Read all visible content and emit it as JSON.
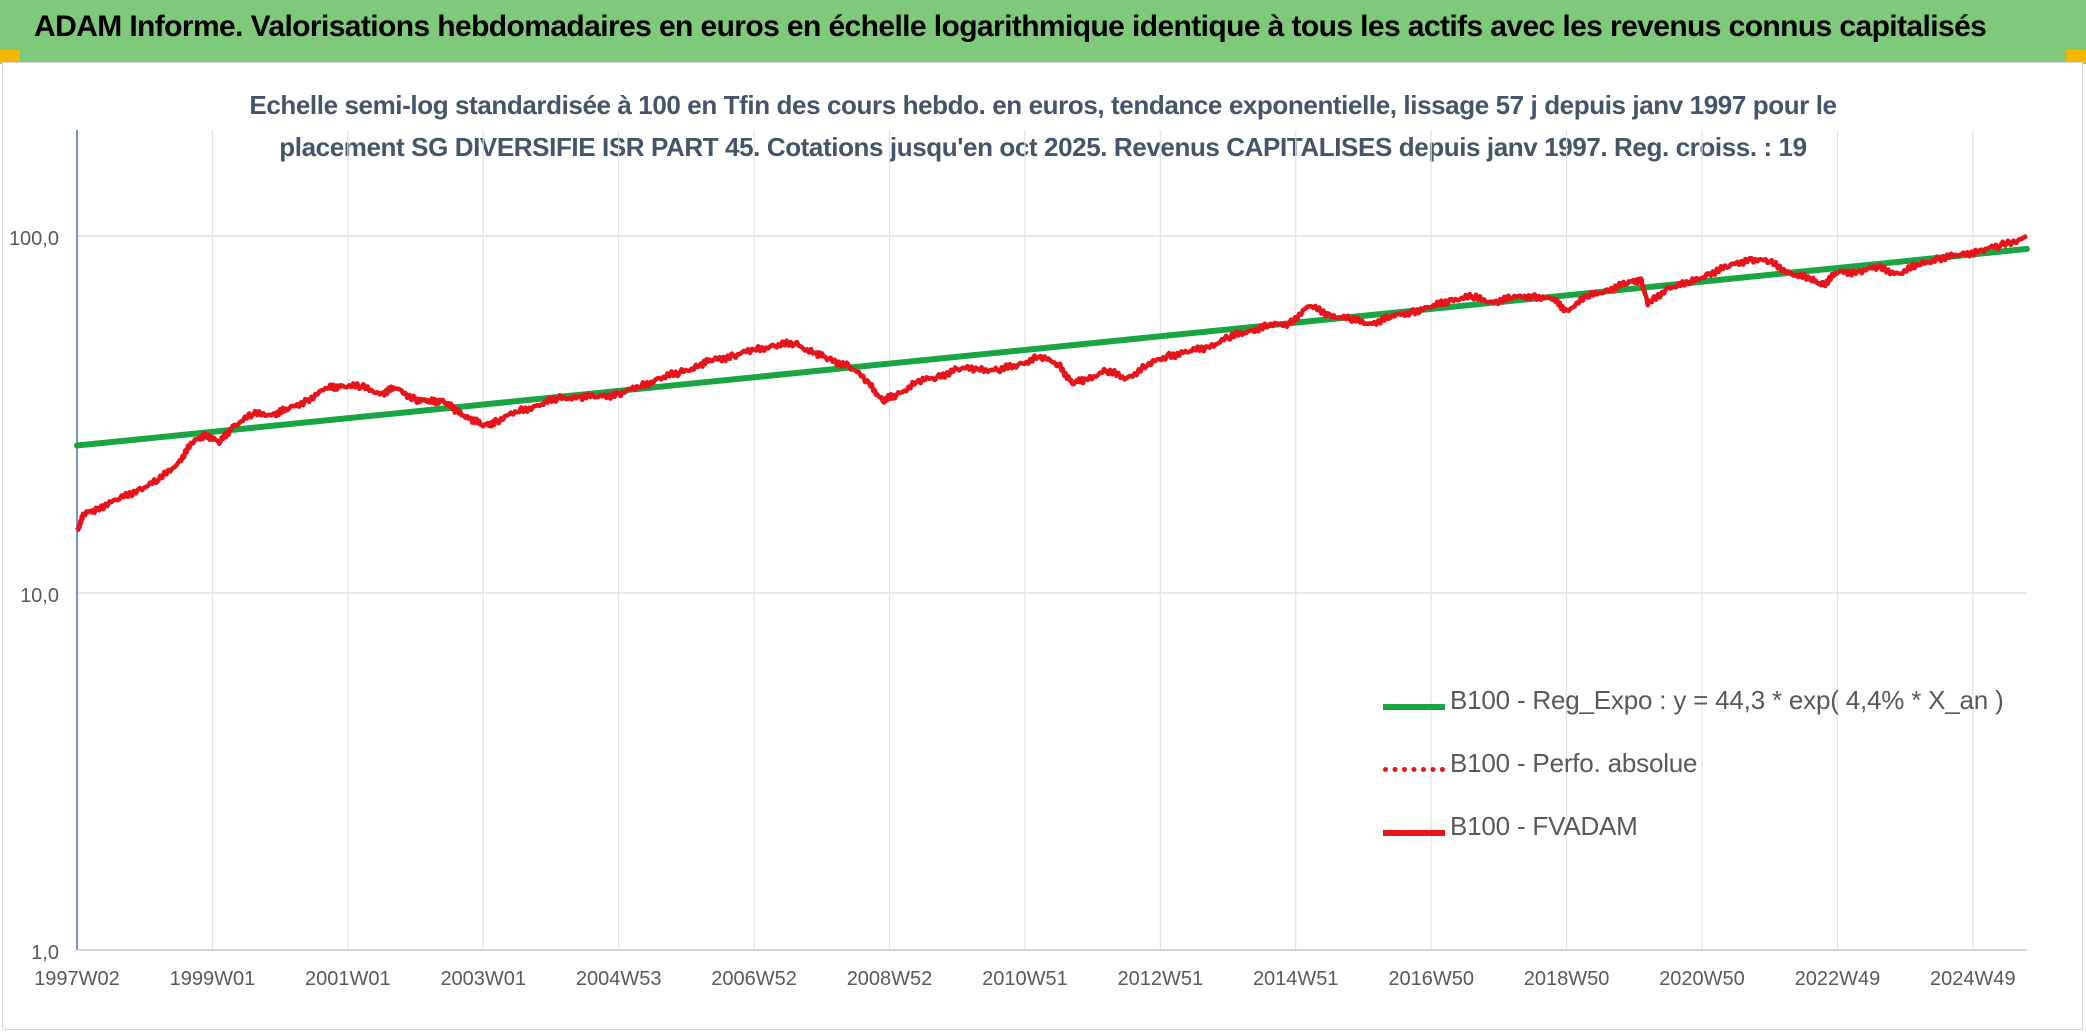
{
  "header": {
    "title": "ADAM Informe. Valorisations hebdomadaires en euros en échelle logarithmique identique à tous les actifs avec les revenus connus capitalisés"
  },
  "colors": {
    "header_bg": "#7fc97a",
    "regression": "#1aa544",
    "fvadam": "#e8141b",
    "perfo": "#e8141b",
    "subtitle_text": "#44546a"
  },
  "chart_data": {
    "type": "line",
    "title_line1": "Echelle semi-log standardisée à 100 en Tfin des cours hebdo. en euros, tendance exponentielle, lissage 57 j depuis janv 1997 pour le",
    "title_line2": "placement SG DIVERSIFIE ISR PART 45. Cotations jusqu'en oct 2025. Revenus CAPITALISES depuis janv 1997. Reg. croiss. : 19",
    "y_scale": "log",
    "ylim": [
      1,
      200
    ],
    "y_ticks": [
      {
        "value": 1,
        "label": "1,0"
      },
      {
        "value": 10,
        "label": "10,0"
      },
      {
        "value": 100,
        "label": "100,0"
      }
    ],
    "xlim": [
      1997.0,
      2025.8
    ],
    "x_ticks": [
      {
        "value": 1997.0,
        "label": "1997W02"
      },
      {
        "value": 1999.0,
        "label": "1999W01"
      },
      {
        "value": 2001.0,
        "label": "2001W01"
      },
      {
        "value": 2003.0,
        "label": "2003W01"
      },
      {
        "value": 2005.0,
        "label": "2004W53"
      },
      {
        "value": 2007.0,
        "label": "2006W52"
      },
      {
        "value": 2009.0,
        "label": "2008W52"
      },
      {
        "value": 2011.0,
        "label": "2010W51"
      },
      {
        "value": 2013.0,
        "label": "2012W51"
      },
      {
        "value": 2015.0,
        "label": "2014W51"
      },
      {
        "value": 2017.0,
        "label": "2016W50"
      },
      {
        "value": 2019.0,
        "label": "2018W50"
      },
      {
        "value": 2021.0,
        "label": "2020W50"
      },
      {
        "value": 2023.0,
        "label": "2022W49"
      },
      {
        "value": 2025.0,
        "label": "2024W49"
      }
    ],
    "grid": true,
    "legend_position": "bottom-right",
    "series": [
      {
        "name": "B100 - Reg_Expo : y = 44,3 * exp( 4,4% *  X_an )",
        "style": "solid-thick",
        "x": [
          1997.0,
          2025.8
        ],
        "values": [
          25.9,
          92.0
        ]
      },
      {
        "name": "B100 - Perfo. absolue",
        "style": "dotted",
        "x": [],
        "values": []
      },
      {
        "name": "B100 - FVADAM",
        "style": "solid",
        "x": [
          1997.0,
          1997.1,
          1997.3,
          1997.6,
          1997.9,
          1998.2,
          1998.5,
          1998.7,
          1998.9,
          1999.1,
          1999.3,
          1999.6,
          1999.9,
          2000.1,
          2000.4,
          2000.7,
          2000.9,
          2001.2,
          2001.5,
          2001.7,
          2002.0,
          2002.2,
          2002.4,
          2002.6,
          2002.8,
          2003.0,
          2003.2,
          2003.5,
          2003.8,
          2004.1,
          2004.4,
          2004.7,
          2005.0,
          2005.3,
          2005.6,
          2005.9,
          2006.2,
          2006.4,
          2006.7,
          2007.0,
          2007.3,
          2007.6,
          2007.9,
          2008.1,
          2008.4,
          2008.7,
          2008.9,
          2009.1,
          2009.4,
          2009.7,
          2010.0,
          2010.3,
          2010.6,
          2010.9,
          2011.2,
          2011.5,
          2011.7,
          2011.9,
          2012.2,
          2012.5,
          2012.8,
          2013.1,
          2013.4,
          2013.7,
          2014.0,
          2014.3,
          2014.6,
          2014.9,
          2015.2,
          2015.5,
          2015.8,
          2016.1,
          2016.4,
          2016.7,
          2017.0,
          2017.3,
          2017.6,
          2017.9,
          2018.2,
          2018.5,
          2018.8,
          2019.0,
          2019.3,
          2019.6,
          2019.9,
          2020.1,
          2020.2,
          2020.5,
          2020.8,
          2021.1,
          2021.4,
          2021.7,
          2022.0,
          2022.3,
          2022.6,
          2022.8,
          2023.0,
          2023.3,
          2023.6,
          2023.9,
          2024.2,
          2024.5,
          2024.8,
          2025.1,
          2025.4,
          2025.8
        ],
        "values": [
          15.0,
          16.5,
          17.3,
          18.2,
          19.5,
          20.6,
          23.3,
          26.2,
          28.0,
          26.2,
          29.4,
          31.6,
          31.8,
          32.5,
          34.8,
          37.4,
          38.2,
          37.7,
          36.3,
          37.4,
          35.0,
          34.2,
          34.8,
          32.2,
          31.0,
          29.3,
          30.4,
          32.1,
          33.6,
          35.0,
          35.5,
          35.4,
          36.2,
          37.7,
          40.0,
          41.3,
          43.6,
          45.0,
          46.2,
          48.0,
          49.3,
          50.0,
          47.0,
          45.2,
          43.3,
          38.7,
          34.5,
          35.8,
          39.0,
          40.2,
          42.4,
          42.5,
          42.0,
          43.6,
          45.8,
          43.8,
          38.5,
          39.8,
          41.8,
          40.0,
          43.2,
          46.3,
          47.2,
          49.0,
          51.7,
          54.3,
          55.9,
          57.0,
          63.5,
          60.3,
          58.3,
          57.0,
          59.0,
          61.5,
          63.0,
          66.6,
          67.3,
          65.5,
          66.9,
          68.2,
          66.3,
          62.0,
          67.4,
          70.8,
          73.5,
          76.0,
          64.0,
          72.0,
          73.4,
          78.6,
          82.0,
          86.5,
          84.4,
          79.0,
          75.3,
          73.5,
          78.8,
          79.7,
          81.5,
          78.6,
          82.8,
          86.9,
          88.0,
          91.2,
          93.5,
          100.0
        ]
      }
    ]
  }
}
